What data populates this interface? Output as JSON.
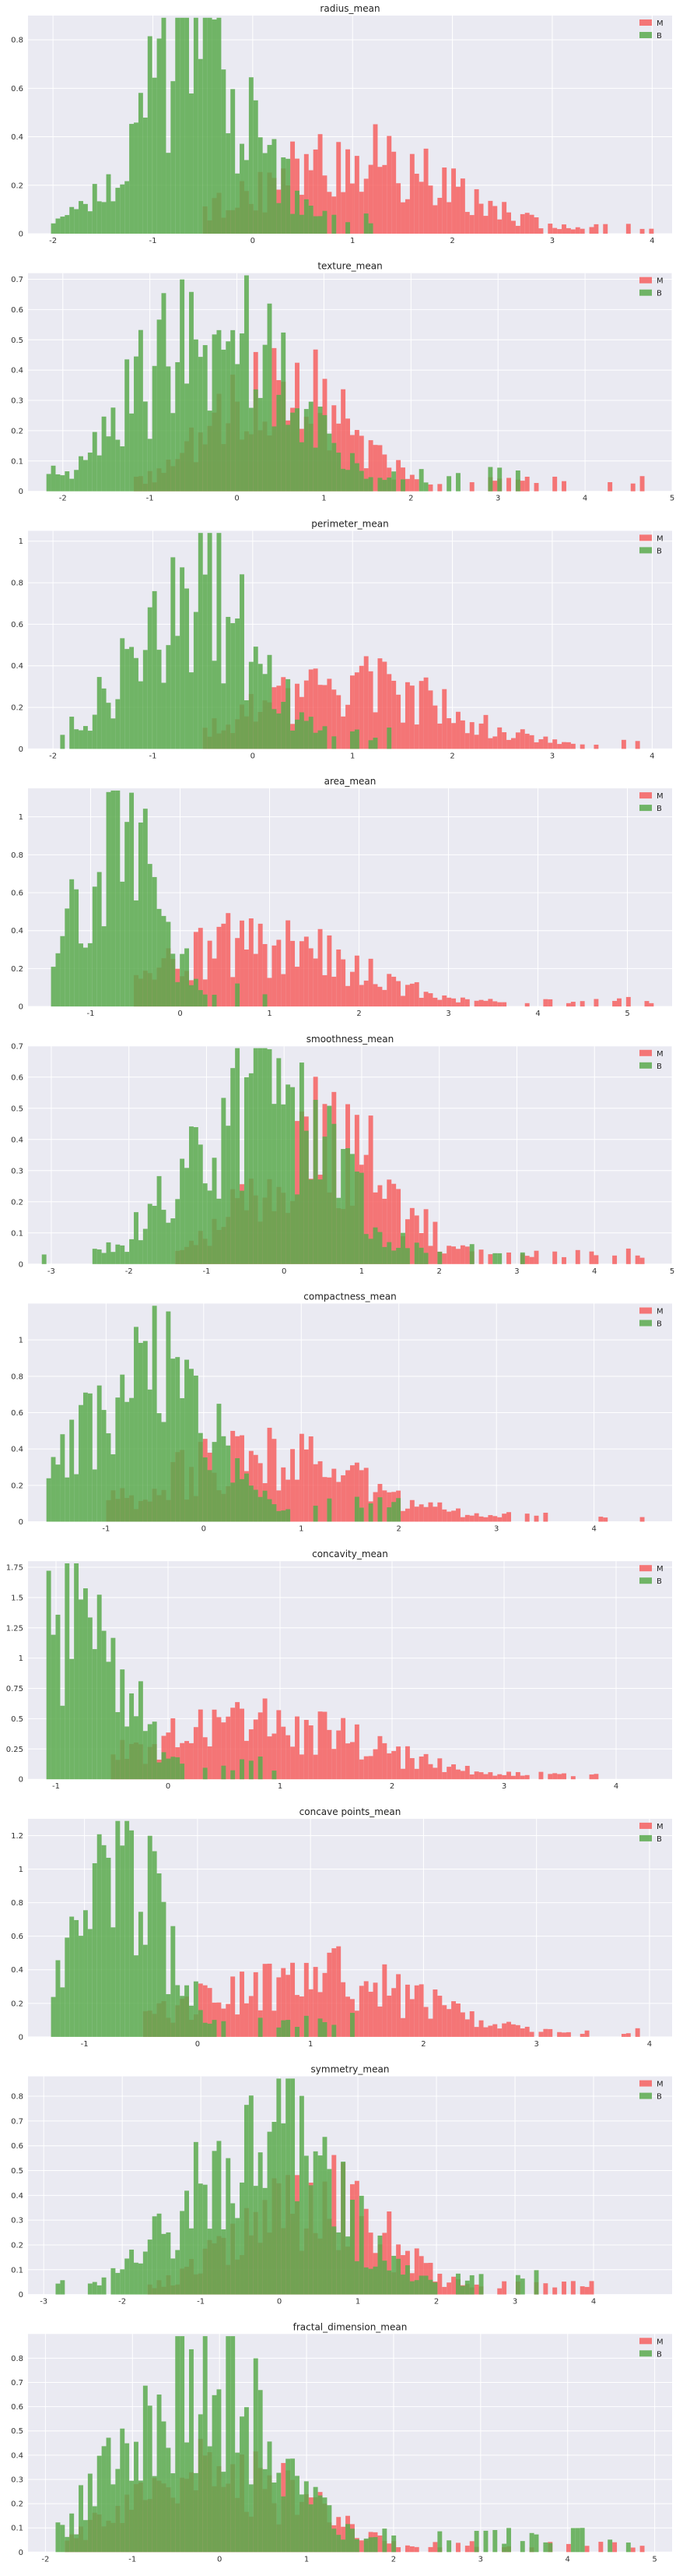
{
  "colors": {
    "M": "#f66060",
    "B": "#5aaa4e",
    "panel_bg": "#eaeaf2",
    "grid": "#ffffff"
  },
  "legend_labels": [
    "M",
    "B"
  ],
  "chart_data": [
    {
      "type": "bar",
      "subtype": "histogram",
      "title": "radius_mean",
      "xlim": [
        -2.25,
        4.2
      ],
      "ylim": [
        0,
        0.9
      ],
      "xticks": [
        -2,
        -1,
        0,
        1,
        2,
        3,
        4
      ],
      "yticks": [
        0,
        0.2,
        0.4,
        0.6,
        0.8
      ],
      "legend": "top-right",
      "grid": true,
      "series": [
        {
          "name": "M",
          "dist": {
            "center": 1.0,
            "spread": 0.95,
            "min": -0.5,
            "max": 4.0,
            "peak": 0.38
          }
        },
        {
          "name": "B",
          "dist": {
            "center": -0.6,
            "spread": 0.6,
            "min": -2.0,
            "max": 1.3,
            "peak": 0.88
          }
        }
      ]
    },
    {
      "type": "bar",
      "subtype": "histogram",
      "title": "texture_mean",
      "xlim": [
        -2.4,
        5.0
      ],
      "ylim": [
        0,
        0.72
      ],
      "xticks": [
        -2,
        -1,
        0,
        1,
        2,
        3,
        4,
        5
      ],
      "yticks": [
        0,
        0.1,
        0.2,
        0.3,
        0.4,
        0.5,
        0.6,
        0.7
      ],
      "legend": "top-right",
      "grid": true,
      "series": [
        {
          "name": "M",
          "dist": {
            "center": 0.5,
            "spread": 0.75,
            "min": -1.3,
            "max": 4.7,
            "peak": 0.45
          }
        },
        {
          "name": "B",
          "dist": {
            "center": -0.3,
            "spread": 0.85,
            "min": -2.2,
            "max": 3.3,
            "peak": 0.68
          }
        }
      ]
    },
    {
      "type": "bar",
      "subtype": "histogram",
      "title": "perimeter_mean",
      "xlim": [
        -2.25,
        4.2
      ],
      "ylim": [
        0,
        1.05
      ],
      "xticks": [
        -2,
        -1,
        0,
        1,
        2,
        3,
        4
      ],
      "yticks": [
        0,
        0.2,
        0.4,
        0.6,
        0.8,
        1.0
      ],
      "legend": "top-right",
      "grid": true,
      "series": [
        {
          "name": "M",
          "dist": {
            "center": 1.0,
            "spread": 0.95,
            "min": -0.5,
            "max": 3.9,
            "peak": 0.38
          }
        },
        {
          "name": "B",
          "dist": {
            "center": -0.6,
            "spread": 0.6,
            "min": -1.95,
            "max": 1.4,
            "peak": 1.0
          }
        }
      ]
    },
    {
      "type": "bar",
      "subtype": "histogram",
      "title": "area_mean",
      "xlim": [
        -1.7,
        5.5
      ],
      "ylim": [
        0,
        1.15
      ],
      "xticks": [
        -1,
        0,
        1,
        2,
        3,
        4,
        5
      ],
      "yticks": [
        0,
        0.2,
        0.4,
        0.6,
        0.8,
        1.0
      ],
      "legend": "top-right",
      "grid": true,
      "series": [
        {
          "name": "M",
          "dist": {
            "center": 0.9,
            "spread": 1.1,
            "min": -0.5,
            "max": 5.3,
            "peak": 0.42
          }
        },
        {
          "name": "B",
          "dist": {
            "center": -0.7,
            "spread": 0.45,
            "min": -1.45,
            "max": 1.0,
            "peak": 1.1
          }
        }
      ]
    },
    {
      "type": "bar",
      "subtype": "histogram",
      "title": "smoothness_mean",
      "xlim": [
        -3.3,
        5.0
      ],
      "ylim": [
        0,
        0.7
      ],
      "xticks": [
        -3,
        -2,
        -1,
        0,
        1,
        2,
        3,
        4,
        5
      ],
      "yticks": [
        0,
        0.1,
        0.2,
        0.3,
        0.4,
        0.5,
        0.6,
        0.7
      ],
      "legend": "top-right",
      "grid": true,
      "series": [
        {
          "name": "M",
          "dist": {
            "center": 0.5,
            "spread": 0.85,
            "min": -1.4,
            "max": 4.8,
            "peak": 0.5
          }
        },
        {
          "name": "B",
          "dist": {
            "center": -0.3,
            "spread": 0.9,
            "min": -3.1,
            "max": 3.2,
            "peak": 0.67
          }
        }
      ]
    },
    {
      "type": "bar",
      "subtype": "histogram",
      "title": "compactness_mean",
      "xlim": [
        -1.8,
        4.8
      ],
      "ylim": [
        0,
        1.2
      ],
      "xticks": [
        -1,
        0,
        1,
        2,
        3,
        4
      ],
      "yticks": [
        0,
        0.2,
        0.4,
        0.6,
        0.8,
        1.0
      ],
      "legend": "top-right",
      "grid": true,
      "series": [
        {
          "name": "M",
          "dist": {
            "center": 0.6,
            "spread": 1.0,
            "min": -1.0,
            "max": 4.6,
            "peak": 0.45
          }
        },
        {
          "name": "B",
          "dist": {
            "center": -0.6,
            "spread": 0.6,
            "min": -1.6,
            "max": 2.0,
            "peak": 1.15
          }
        }
      ]
    },
    {
      "type": "bar",
      "subtype": "histogram",
      "title": "concavity_mean",
      "xlim": [
        -1.25,
        4.5
      ],
      "ylim": [
        0,
        1.8
      ],
      "xticks": [
        -1,
        0,
        1,
        2,
        3,
        4
      ],
      "yticks": [
        0,
        0.25,
        0.5,
        0.75,
        1.0,
        1.25,
        1.5,
        1.75
      ],
      "legend": "top-right",
      "grid": true,
      "series": [
        {
          "name": "M",
          "dist": {
            "center": 0.8,
            "spread": 1.0,
            "min": -0.5,
            "max": 4.2,
            "peak": 0.55
          }
        },
        {
          "name": "B",
          "dist": {
            "center": -0.8,
            "spread": 0.4,
            "min": -1.1,
            "max": 1.0,
            "peak": 1.75
          }
        }
      ]
    },
    {
      "type": "bar",
      "subtype": "histogram",
      "title": "concave points_mean",
      "xlim": [
        -1.5,
        4.2
      ],
      "ylim": [
        0,
        1.3
      ],
      "xticks": [
        -1,
        0,
        1,
        2,
        3,
        4
      ],
      "yticks": [
        0,
        0.2,
        0.4,
        0.6,
        0.8,
        1.0,
        1.2
      ],
      "legend": "top-right",
      "grid": true,
      "series": [
        {
          "name": "M",
          "dist": {
            "center": 1.0,
            "spread": 0.95,
            "min": -0.5,
            "max": 3.9,
            "peak": 0.45
          }
        },
        {
          "name": "B",
          "dist": {
            "center": -0.7,
            "spread": 0.4,
            "min": -1.3,
            "max": 1.5,
            "peak": 1.25
          }
        }
      ]
    },
    {
      "type": "bar",
      "subtype": "histogram",
      "title": "symmetry_mean",
      "xlim": [
        -3.2,
        5.0
      ],
      "ylim": [
        0,
        0.88
      ],
      "xticks": [
        -3,
        -2,
        -1,
        0,
        1,
        2,
        3,
        4
      ],
      "yticks": [
        0,
        0.1,
        0.2,
        0.3,
        0.4,
        0.5,
        0.6,
        0.7,
        0.8
      ],
      "legend": "top-right",
      "grid": true,
      "series": [
        {
          "name": "M",
          "dist": {
            "center": 0.4,
            "spread": 0.9,
            "min": -1.8,
            "max": 4.0,
            "peak": 0.5
          }
        },
        {
          "name": "B",
          "dist": {
            "center": -0.2,
            "spread": 0.9,
            "min": -2.9,
            "max": 3.5,
            "peak": 0.85
          }
        }
      ]
    },
    {
      "type": "bar",
      "subtype": "histogram",
      "title": "fractal_dimension_mean",
      "xlim": [
        -2.2,
        5.2
      ],
      "ylim": [
        0,
        0.9
      ],
      "xticks": [
        -2,
        -1,
        0,
        1,
        2,
        3,
        4,
        5
      ],
      "yticks": [
        0,
        0.1,
        0.2,
        0.3,
        0.4,
        0.5,
        0.6,
        0.7,
        0.8
      ],
      "legend": "top-right",
      "grid": true,
      "series": [
        {
          "name": "M",
          "dist": {
            "center": 0.0,
            "spread": 1.0,
            "min": -1.8,
            "max": 4.9,
            "peak": 0.4
          }
        },
        {
          "name": "B",
          "dist": {
            "center": -0.2,
            "spread": 0.85,
            "min": -1.9,
            "max": 5.0,
            "peak": 0.85
          }
        }
      ]
    }
  ]
}
